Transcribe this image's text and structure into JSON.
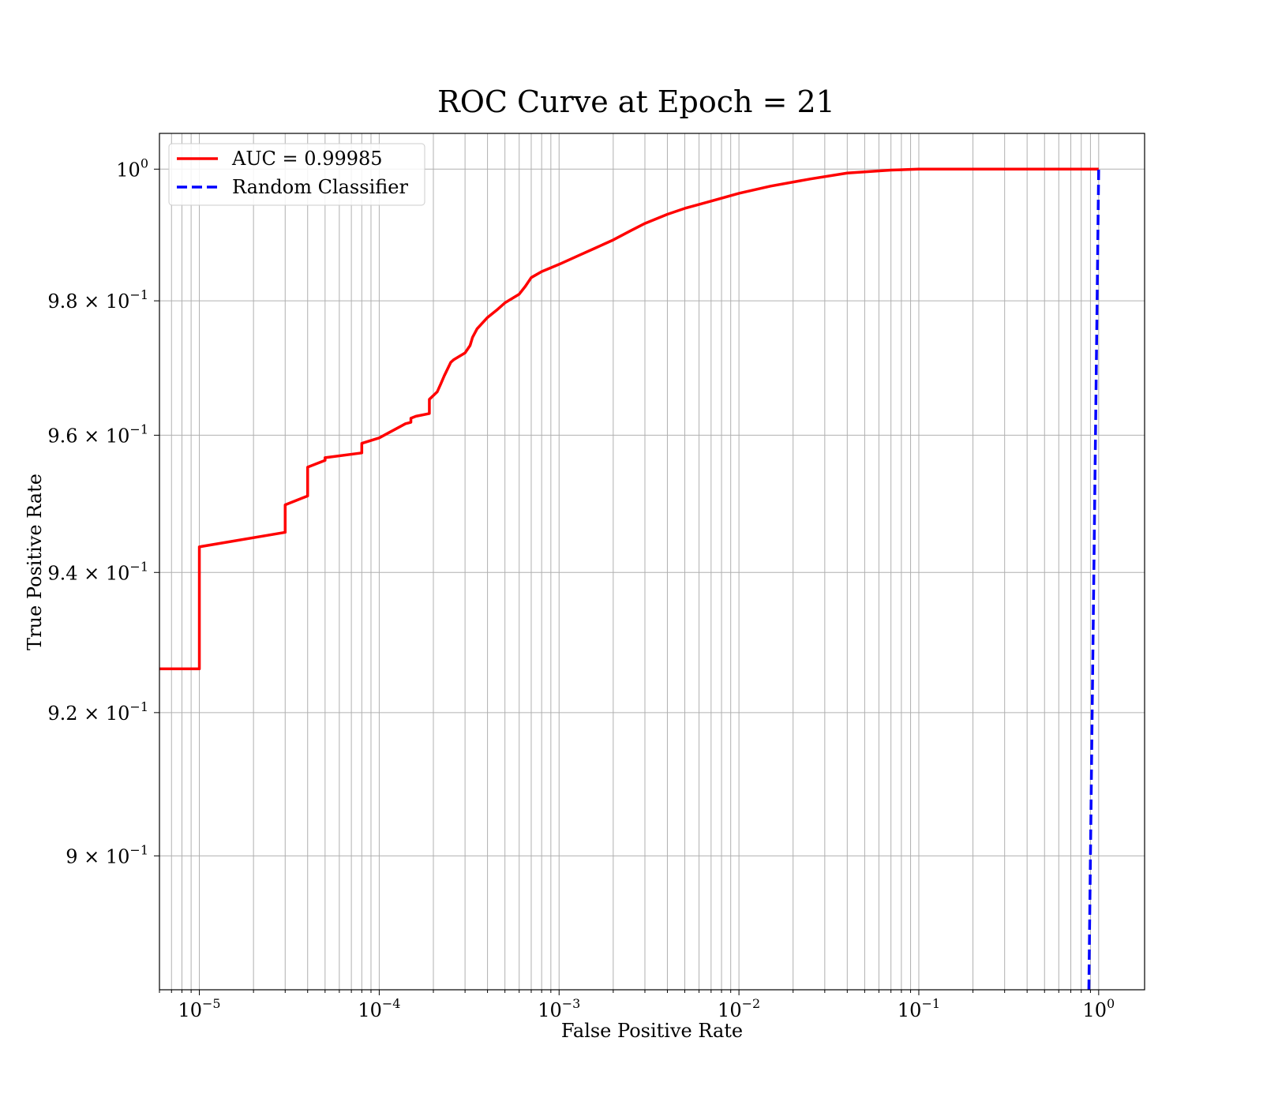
{
  "chart_data": {
    "type": "line",
    "title": "ROC Curve at Epoch = 21",
    "xlabel": "False Positive Rate",
    "ylabel": "True Positive Rate",
    "xscale": "log",
    "yscale": "log",
    "xlim": [
      6e-06,
      1.8
    ],
    "ylim": [
      0.8817,
      1.0055
    ],
    "grid": "on (major and minor)",
    "legend_position": "upper-left",
    "x_ticks": [
      {
        "base": "10",
        "exp": "−5",
        "value": 1e-05
      },
      {
        "base": "10",
        "exp": "−4",
        "value": 0.0001
      },
      {
        "base": "10",
        "exp": "−3",
        "value": 0.001
      },
      {
        "base": "10",
        "exp": "−2",
        "value": 0.01
      },
      {
        "base": "10",
        "exp": "−1",
        "value": 0.1
      },
      {
        "base": "10",
        "exp": "0",
        "value": 1
      }
    ],
    "y_ticks": [
      {
        "base": "10",
        "exp": "0",
        "value": 1.0
      },
      {
        "base": "9.8 × 10",
        "exp": "−1",
        "value": 0.98
      },
      {
        "base": "9.6 × 10",
        "exp": "−1",
        "value": 0.96
      },
      {
        "base": "9.4 × 10",
        "exp": "−1",
        "value": 0.94
      },
      {
        "base": "9.2 × 10",
        "exp": "−1",
        "value": 0.92
      },
      {
        "base": "9 × 10",
        "exp": "−1",
        "value": 0.9
      }
    ],
    "series": [
      {
        "name": "AUC = 0.99985",
        "color": "#ff0000",
        "style": "solid",
        "x": [
          6e-06,
          1e-05,
          1e-05,
          3e-05,
          3e-05,
          4e-05,
          4e-05,
          5e-05,
          5e-05,
          8e-05,
          8e-05,
          0.0001,
          0.00011,
          0.00014,
          0.00015,
          0.00015,
          0.00016,
          0.00019,
          0.00019,
          0.00021,
          0.00022,
          0.00023,
          0.00025,
          0.00026,
          0.0003,
          0.00032,
          0.00033,
          0.00035,
          0.0004,
          0.00045,
          0.0005,
          0.0006,
          0.00065,
          0.0007,
          0.0008,
          0.001,
          0.0013,
          0.0016,
          0.002,
          0.0025,
          0.003,
          0.004,
          0.005,
          0.007,
          0.01,
          0.015,
          0.025,
          0.04,
          0.07,
          0.1,
          1
        ],
        "y": [
          0.9262,
          0.9262,
          0.9437,
          0.9458,
          0.9498,
          0.9511,
          0.9553,
          0.9563,
          0.9567,
          0.9574,
          0.9588,
          0.9596,
          0.9602,
          0.9617,
          0.9619,
          0.9625,
          0.9628,
          0.9632,
          0.9653,
          0.9664,
          0.9676,
          0.9688,
          0.9708,
          0.9712,
          0.9722,
          0.9733,
          0.9745,
          0.9758,
          0.9775,
          0.9786,
          0.9797,
          0.981,
          0.9822,
          0.9835,
          0.9844,
          0.9855,
          0.9869,
          0.988,
          0.9892,
          0.9906,
          0.9917,
          0.9931,
          0.994,
          0.9951,
          0.9963,
          0.9974,
          0.9985,
          0.9994,
          0.99985,
          1.0,
          1.0
        ]
      },
      {
        "name": "Random Classifier",
        "color": "#0000ff",
        "style": "dashed",
        "x": [
          0.8817,
          0.9,
          0.92,
          0.94,
          0.96,
          0.98,
          1.0
        ],
        "y": [
          0.8817,
          0.9,
          0.92,
          0.94,
          0.96,
          0.98,
          1.0
        ]
      }
    ]
  }
}
